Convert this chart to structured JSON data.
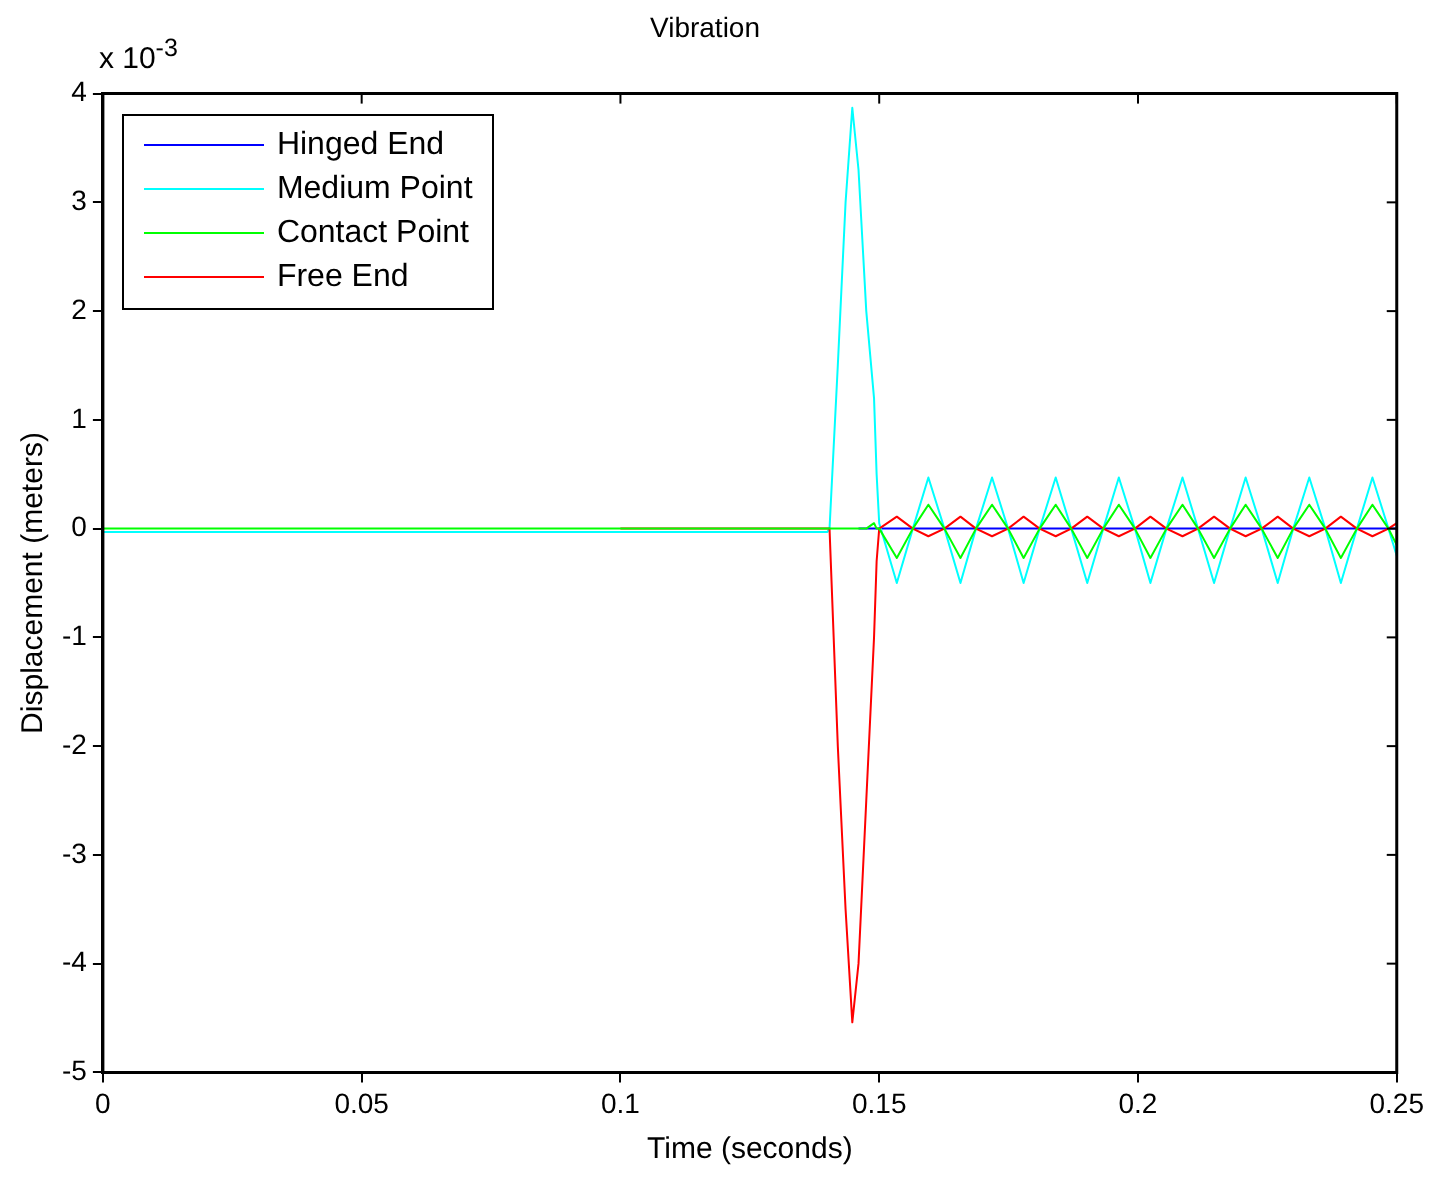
{
  "chart_data": {
    "type": "line",
    "title": "Vibration",
    "xlabel": "Time (seconds)",
    "ylabel": "Displacement (meters)",
    "annotations": [
      "x 10$^{-3}$"
    ],
    "x": [
      0,
      0.05,
      0.1,
      0.14,
      0.1404,
      0.142,
      0.1435,
      0.1448,
      0.146,
      0.1475,
      0.149,
      0.1495,
      0.15,
      0.1534,
      0.1565,
      0.1595,
      0.1626,
      0.1657,
      0.1687,
      0.1718,
      0.1749,
      0.1779,
      0.181,
      0.1841,
      0.1871,
      0.1902,
      0.1933,
      0.1963,
      0.1994,
      0.2024,
      0.2055,
      0.2086,
      0.2116,
      0.2147,
      0.2178,
      0.2208,
      0.2239,
      0.227,
      0.23,
      0.2331,
      0.2362,
      0.2392,
      0.2423,
      0.2453,
      0.2484,
      0.25
    ],
    "series": [
      {
        "name": "Hinged End",
        "color": "#0000ff",
        "values": [
          null,
          null,
          null,
          null,
          null,
          null,
          null,
          null,
          0,
          0,
          0,
          0,
          0,
          0,
          0,
          0,
          0,
          0,
          0,
          0,
          0,
          0,
          0,
          0,
          0,
          0,
          0,
          0,
          0,
          0,
          0,
          0,
          0,
          0,
          0,
          0,
          0,
          0,
          0,
          0,
          0,
          0,
          0,
          0,
          0,
          0
        ]
      },
      {
        "name": "Medium Point",
        "color": "#00ffff",
        "values": [
          -0.03,
          -0.03,
          -0.03,
          -0.03,
          0,
          1.5,
          3.0,
          3.87,
          3.3,
          2.0,
          1.2,
          0.5,
          0.05,
          -0.5,
          0,
          0.47,
          0,
          -0.5,
          0,
          0.47,
          0,
          -0.5,
          0,
          0.47,
          0,
          -0.5,
          0,
          0.47,
          0,
          -0.5,
          0,
          0.47,
          0,
          -0.5,
          0,
          0.47,
          0,
          -0.5,
          0,
          0.47,
          0,
          -0.5,
          0,
          0.47,
          0,
          -0.25
        ]
      },
      {
        "name": "Contact Point",
        "color": "#00ff00",
        "values": [
          0,
          0,
          0,
          0,
          0,
          0,
          0,
          0,
          0,
          0,
          0.05,
          0,
          0,
          -0.27,
          0,
          0.22,
          0,
          -0.27,
          0,
          0.22,
          0,
          -0.27,
          0,
          0.22,
          0,
          -0.27,
          0,
          0.22,
          0,
          -0.27,
          0,
          0.22,
          0,
          -0.27,
          0,
          0.22,
          0,
          -0.27,
          0,
          0.22,
          0,
          -0.27,
          0,
          0.22,
          0,
          -0.15
        ]
      },
      {
        "name": "Free End",
        "color": "#ff0000",
        "values": [
          null,
          null,
          0,
          0,
          0,
          -2.0,
          -3.5,
          -4.54,
          -4.0,
          -2.5,
          -1.0,
          -0.3,
          0,
          0.11,
          0,
          -0.07,
          0,
          0.11,
          0,
          -0.07,
          0,
          0.11,
          0,
          -0.07,
          0,
          0.11,
          0,
          -0.07,
          0,
          0.11,
          0,
          -0.07,
          0,
          0.11,
          0,
          -0.07,
          0,
          0.11,
          0,
          -0.07,
          0,
          0.11,
          0,
          -0.07,
          0,
          0.05
        ]
      }
    ],
    "xlim": [
      0,
      0.25
    ],
    "xticks": [
      0,
      0.05,
      0.1,
      0.15,
      0.2,
      0.25
    ],
    "ylim": [
      -5,
      4
    ],
    "yticks": [
      -5,
      -4,
      -3,
      -2,
      -1,
      0,
      1,
      2,
      3,
      4
    ],
    "grid": false,
    "legend": "top left",
    "marker": "none",
    "line_style": "solid"
  }
}
